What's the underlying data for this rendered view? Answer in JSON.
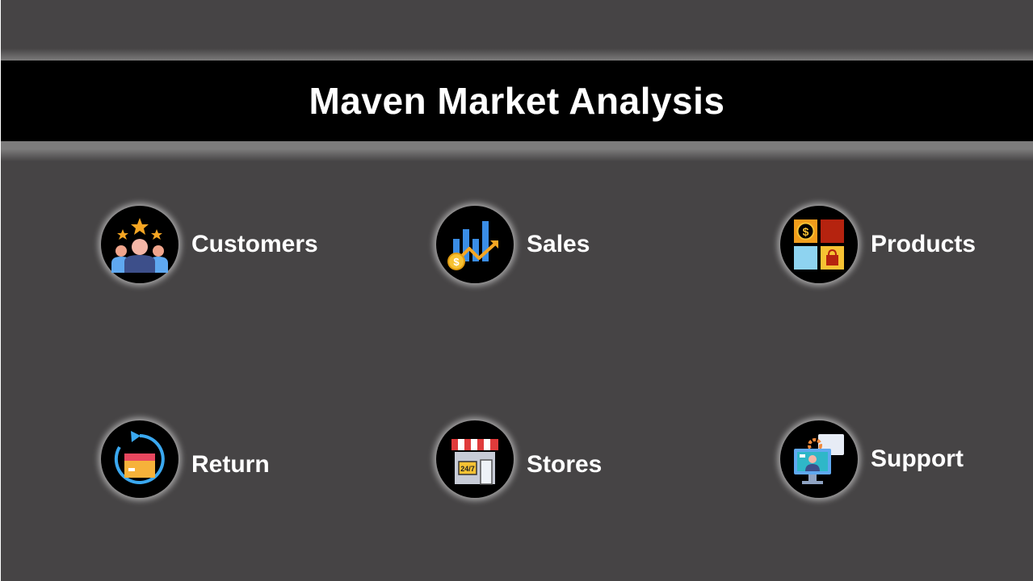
{
  "header": {
    "title": "Maven Market Analysis"
  },
  "nav": {
    "customers": {
      "label": "Customers",
      "icon": "customers-icon"
    },
    "sales": {
      "label": "Sales",
      "icon": "sales-chart-icon"
    },
    "products": {
      "label": "Products",
      "icon": "products-icon"
    },
    "return": {
      "label": "Return",
      "icon": "return-box-icon"
    },
    "stores": {
      "label": "Stores",
      "icon": "store-icon",
      "sign": "24/7"
    },
    "support": {
      "label": "Support",
      "icon": "support-icon"
    }
  },
  "colors": {
    "background": "#464445",
    "banner": "#000000",
    "text": "#ffffff"
  }
}
